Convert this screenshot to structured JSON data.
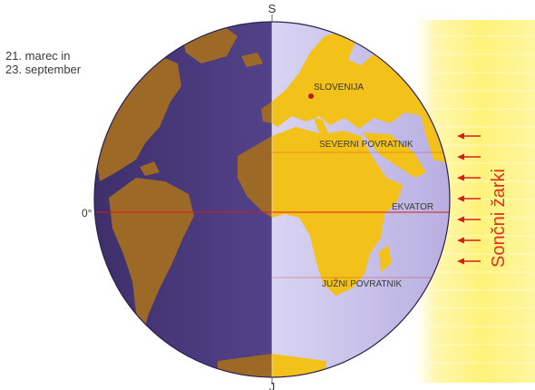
{
  "date_label": [
    "21. marec in",
    "23. september"
  ],
  "pole_top": "S",
  "pole_bottom": "J",
  "meridian_label": "0°",
  "rays_label": "Sončni žarki",
  "place_labels": {
    "slovenia": "SLOVENIJA",
    "tropic_north": "SEVERNI POVRATNIK",
    "equator": "EKVATOR",
    "tropic_south": "JUŽNI POVRATNIK"
  },
  "colors": {
    "night_ocean": "#4b3a7a",
    "day_ocean": "#c4bde6",
    "night_land": "#9c6a26",
    "day_land": "#f2c21a",
    "sun_band": "#fff48a",
    "ray_arrow": "#d81c1c",
    "latitude_line": "#d81c1c"
  },
  "ray_arrow_count": 7
}
